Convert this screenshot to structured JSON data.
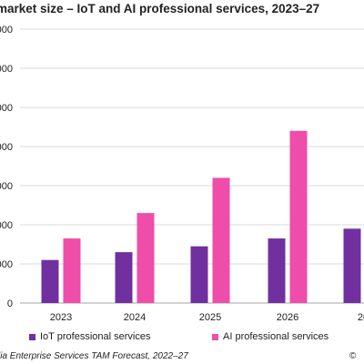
{
  "chart_data": {
    "type": "bar",
    "title": "market size – IoT and AI professional services, 2023–27",
    "categories": [
      "2023",
      "2024",
      "2025",
      "2026",
      "20"
    ],
    "y_tick_labels": [
      "000",
      "000",
      "000",
      "000",
      "000",
      "000",
      "000",
      "0"
    ],
    "ylim": [
      0,
      7
    ],
    "grid": true,
    "legend_position": "bottom",
    "series": [
      {
        "name": "IoT professional services",
        "color": "#7030A0",
        "values": [
          1.1,
          1.3,
          1.45,
          1.65,
          1.9
        ]
      },
      {
        "name": "AI professional services",
        "color": "#EE4DAA",
        "values": [
          1.65,
          2.3,
          3.2,
          4.4,
          null
        ]
      }
    ]
  },
  "source": "lia Enterprise Services TAM Forecast, 2022–27",
  "copyright": "©"
}
